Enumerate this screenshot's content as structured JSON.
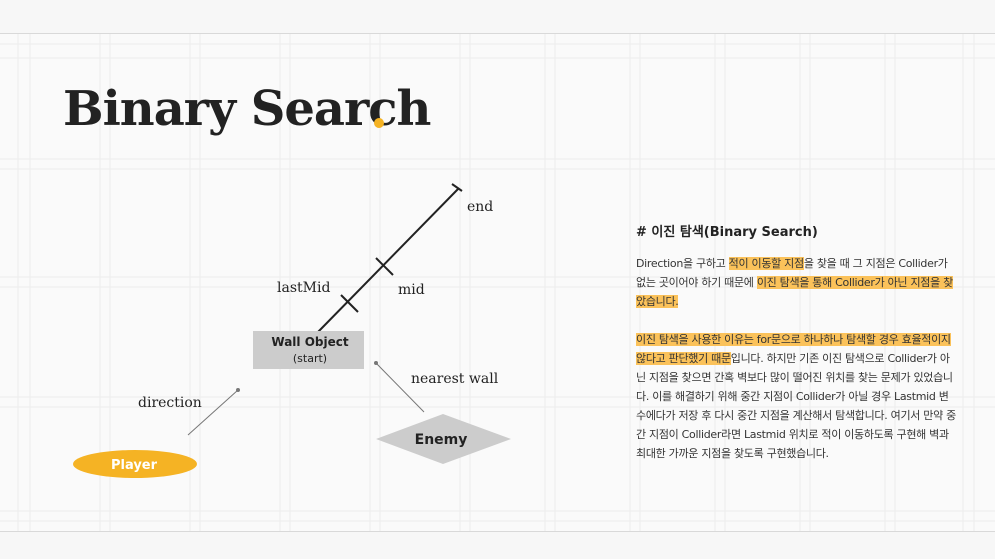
{
  "slide": {
    "title": "Binary Search",
    "accent_color": "#f5b324",
    "highlight_color": "#fbc25a"
  },
  "diagram": {
    "labels": {
      "end": "end",
      "mid": "mid",
      "last_mid": "lastMid",
      "direction": "direction",
      "nearest_wall": "nearest wall"
    },
    "wall_object": {
      "title": "Wall Object",
      "subtitle": "(start)",
      "color": "#cccccc"
    },
    "enemy": {
      "label": "Enemy",
      "color": "#cccccc"
    },
    "player": {
      "label": "Player",
      "color": "#f5b324"
    }
  },
  "panel": {
    "heading": "# 이진 탐색(Binary Search)",
    "paragraph1": [
      {
        "text": "Direction을 구하고 "
      },
      {
        "text": "적이 이동할 지점",
        "hl": true
      },
      {
        "text": "을 찾을 때 그 지점은 Collider가 없는 곳이어야 하기 때문에 "
      },
      {
        "text": "이진 탐색을 통해 Collider가 아닌 지점을 찾았습니다.",
        "hl": true
      }
    ],
    "paragraph2": [
      {
        "text": "이진 탐색을 사용한 이유는 for문으로 하나하나 탐색할 경우 효율적이지 않다고 판단했기 때문",
        "hl": true
      },
      {
        "text": "입니다. 하지만 기존 이진 탐색으로 Collider가 아닌 지점을 찾으면 간혹 벽보다 많이 떨어진 위치를 찾는 문제가 있었습니다. 이를 해결하기 위해 중간 지점이 Collider가 아닐 경우 Lastmid 변수에다가 저장 후 다시 중간 지점을 계산해서 탐색합니다. 여기서 만약 중간 지점이 Collider라면 Lastmid 위치로 적이 이동하도록 구현해 벽과 최대한 가까운 지점을 찾도록 구현했습니다."
      }
    ]
  }
}
